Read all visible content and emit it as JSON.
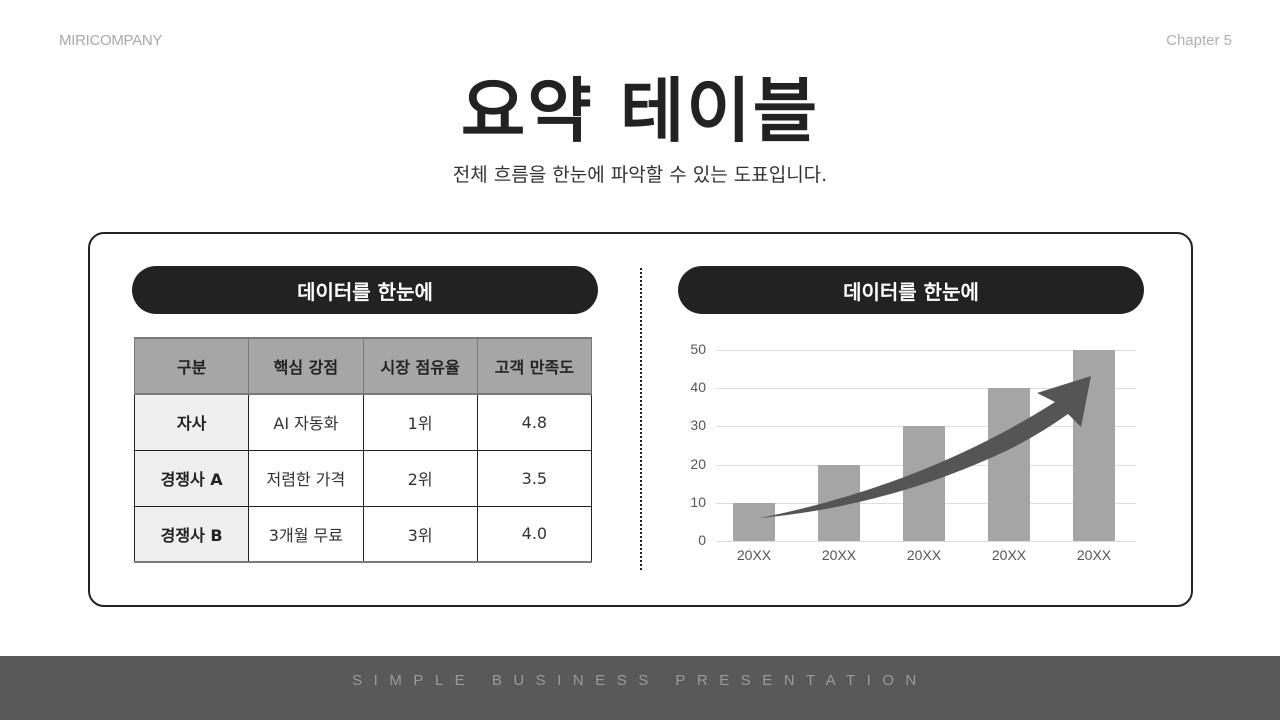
{
  "header": {
    "brand": "MIRICOMPANY",
    "chapter": "Chapter 5",
    "title": "요약 테이블",
    "subtitle": "전체 흐름을 한눈에 파악할 수 있는 도표입니다."
  },
  "left_panel": {
    "pill_label": "데이터를 한눈에",
    "table": {
      "columns": [
        "구분",
        "핵심 강점",
        "시장 점유율",
        "고객 만족도"
      ],
      "rows": [
        [
          "자사",
          "AI 자동화",
          "1위",
          "4.8"
        ],
        [
          "경쟁사 A",
          "저렴한 가격",
          "2위",
          "3.5"
        ],
        [
          "경쟁사 B",
          "3개월 무료",
          "3위",
          "4.0"
        ]
      ]
    }
  },
  "right_panel": {
    "pill_label": "데이터를 한눈에"
  },
  "chart_data": {
    "type": "bar",
    "title": "데이터를 한눈에",
    "categories": [
      "20XX",
      "20XX",
      "20XX",
      "20XX",
      "20XX"
    ],
    "values": [
      10,
      20,
      30,
      40,
      50
    ],
    "xlabel": "",
    "ylabel": "",
    "ylim": [
      0,
      50
    ],
    "yticks": [
      "0",
      "10",
      "20",
      "30",
      "40",
      "50"
    ],
    "grid": true,
    "legend": null,
    "annotations": [
      "upward trend arrow overlaying bars"
    ],
    "bar_color": "#a5a5a5",
    "arrow_color": "#555555"
  },
  "footer": {
    "text": "SIMPLE BUSINESS PRESENTATION"
  },
  "colors": {
    "dark": "#222222",
    "table_header": "#a6a6a6",
    "row_header": "#efefef",
    "footer_bg": "#595959"
  }
}
